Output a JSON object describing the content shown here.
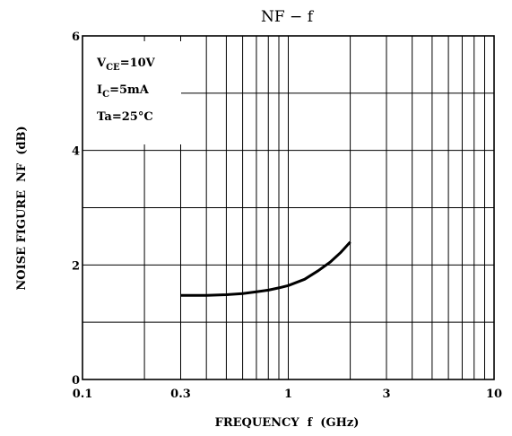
{
  "chart_data": {
    "type": "line",
    "title": "NF − f",
    "xlabel": "FREQUENCY  f  (GHz)",
    "ylabel": "NOISE FIGURE  NF  (dB)",
    "xscale": "log",
    "xlim": [
      0.1,
      10
    ],
    "ylim": [
      0,
      6
    ],
    "x_ticks": [
      "0.1",
      "0.3",
      "1",
      "3",
      "10"
    ],
    "y_ticks": [
      "0",
      "2",
      "4",
      "6"
    ],
    "grid": true,
    "conditions": {
      "vce": {
        "main": "V",
        "sub": "CE",
        "rest": "=10V"
      },
      "ic": {
        "main": "I",
        "sub": "C",
        "rest": "=5mA"
      },
      "ta": {
        "text": "Ta=25°C"
      }
    },
    "series": [
      {
        "x": [
          0.3,
          0.4,
          0.5,
          0.6,
          0.7,
          0.8,
          0.9,
          1.0,
          1.2,
          1.4,
          1.6,
          1.8,
          2.0
        ],
        "y": [
          1.47,
          1.47,
          1.48,
          1.5,
          1.53,
          1.56,
          1.6,
          1.64,
          1.75,
          1.9,
          2.05,
          2.22,
          2.4
        ]
      }
    ]
  }
}
